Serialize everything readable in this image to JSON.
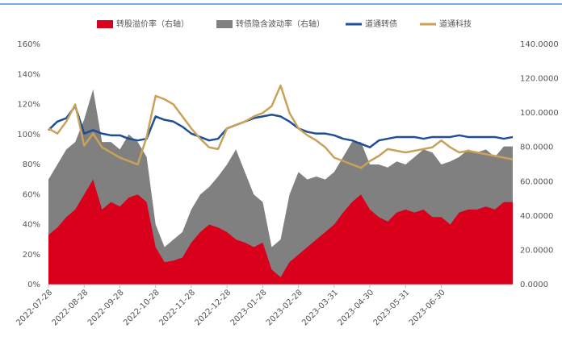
{
  "chart_data": {
    "type": "area",
    "categories": [
      "2022-07-28",
      null,
      null,
      null,
      "2022-08-28",
      null,
      null,
      null,
      "2022-09-28",
      null,
      null,
      null,
      "2022-10-28",
      null,
      null,
      null,
      "2022-11-28",
      null,
      null,
      null,
      "2022-12-28",
      null,
      null,
      null,
      "2023-01-28",
      null,
      null,
      null,
      "2023-02-28",
      null,
      null,
      null,
      "2023-03-31",
      null,
      null,
      null,
      "2023-04-30",
      null,
      null,
      null,
      "2023-05-31",
      null,
      null,
      null,
      "2023-06-30",
      null,
      null,
      null,
      null,
      null,
      null,
      null,
      null
    ],
    "series": [
      {
        "name": "转股溢价率（右轴）",
        "type": "area",
        "color": "#d9001b",
        "values": [
          33,
          38,
          45,
          50,
          60,
          70,
          50,
          55,
          52,
          58,
          60,
          55,
          25,
          15,
          16,
          18,
          28,
          35,
          40,
          38,
          35,
          30,
          28,
          25,
          28,
          10,
          5,
          15,
          20,
          25,
          30,
          35,
          40,
          48,
          55,
          60,
          50,
          45,
          42,
          48,
          50,
          48,
          50,
          45,
          45,
          40,
          48,
          50,
          50,
          52,
          50,
          55,
          55
        ]
      },
      {
        "name": "转债隐含波动率（右轴）",
        "type": "area",
        "color": "#808080",
        "values": [
          70,
          80,
          90,
          95,
          110,
          130,
          95,
          95,
          90,
          100,
          95,
          85,
          40,
          25,
          30,
          35,
          50,
          60,
          65,
          72,
          80,
          90,
          75,
          60,
          55,
          25,
          30,
          60,
          75,
          70,
          72,
          70,
          75,
          85,
          95,
          95,
          80,
          80,
          78,
          82,
          80,
          85,
          90,
          88,
          80,
          82,
          85,
          90,
          88,
          90,
          85,
          92,
          92
        ]
      },
      {
        "name": "道通转债",
        "type": "line",
        "axis": "y2",
        "color": "#1f4e96",
        "values": [
          90,
          95,
          97,
          104,
          88,
          90,
          88,
          87,
          87,
          85,
          84,
          85,
          98,
          96,
          95,
          92,
          88,
          86,
          84,
          85,
          91,
          93,
          95,
          97,
          98,
          99,
          98,
          95,
          91,
          89,
          88,
          88,
          87,
          85,
          84,
          82,
          80,
          84,
          85,
          86,
          86,
          86,
          85,
          86,
          86,
          86,
          87,
          86,
          86,
          86,
          86,
          85,
          86
        ]
      },
      {
        "name": "道通科技",
        "type": "line",
        "axis": "y2",
        "color": "#c9a25a",
        "values": [
          91,
          88,
          95,
          105,
          81,
          88,
          80,
          77,
          74,
          72,
          70,
          86,
          110,
          108,
          105,
          98,
          91,
          85,
          80,
          79,
          91,
          93,
          95,
          98,
          100,
          104,
          116,
          100,
          91,
          87,
          84,
          80,
          74,
          72,
          70,
          68,
          72,
          75,
          79,
          78,
          77,
          78,
          79,
          80,
          84,
          80,
          77,
          78,
          77,
          76,
          75,
          74,
          73
        ]
      }
    ],
    "ylim": [
      0,
      160
    ],
    "yticks": [
      {
        "value": 0,
        "label": "0%"
      },
      {
        "value": 20,
        "label": "20%"
      },
      {
        "value": 40,
        "label": "40%"
      },
      {
        "value": 60,
        "label": "60%"
      },
      {
        "value": 80,
        "label": "80%"
      },
      {
        "value": 100,
        "label": "100%"
      },
      {
        "value": 120,
        "label": "120%"
      },
      {
        "value": 140,
        "label": "140%"
      },
      {
        "value": 160,
        "label": "160%"
      }
    ],
    "y2lim": [
      0,
      140
    ],
    "y2ticks": [
      {
        "value": 0,
        "label": "0.0000"
      },
      {
        "value": 20,
        "label": "20.0000"
      },
      {
        "value": 40,
        "label": "40.0000"
      },
      {
        "value": 60,
        "label": "60.0000"
      },
      {
        "value": 80,
        "label": "80.0000"
      },
      {
        "value": 100,
        "label": "100.0000"
      },
      {
        "value": 120,
        "label": "120.0000"
      },
      {
        "value": 140,
        "label": "140.0000"
      }
    ],
    "grid": false
  }
}
